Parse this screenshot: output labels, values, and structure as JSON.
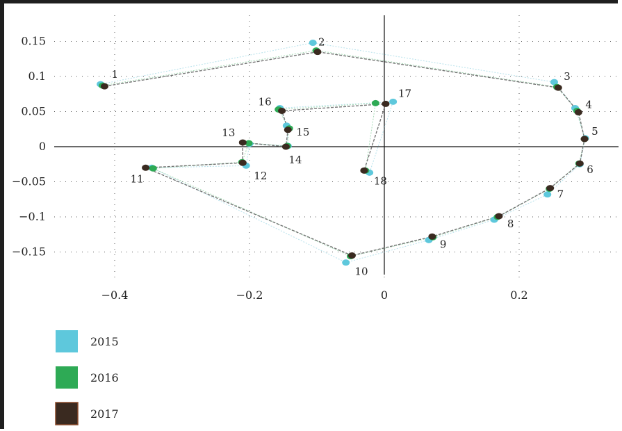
{
  "chart_data": {
    "type": "scatter",
    "title": "",
    "xlabel": "",
    "ylabel": "",
    "xlim": [
      -0.5,
      0.35
    ],
    "ylim": [
      -0.175,
      0.175
    ],
    "grid": true,
    "legend_placement": "bottom-left",
    "xticks": [
      -0.4,
      -0.2,
      0,
      0.2
    ],
    "xtick_labels": [
      "−0.4",
      "−0.2",
      "0",
      "0.2"
    ],
    "yticks": [
      0.15,
      0.1,
      0.05,
      0,
      -0.05,
      -0.1,
      -0.15
    ],
    "ytick_labels": [
      "0.15",
      "0.1",
      "0.05",
      "0",
      "−0.05",
      "−0.1",
      "−0.15"
    ],
    "path_order": [
      "1",
      "2",
      "3",
      "4",
      "5",
      "6",
      "7",
      "8",
      "9",
      "10",
      "11",
      "12",
      "13",
      "14",
      "15",
      "16",
      "17",
      "18"
    ],
    "point_labels": [
      {
        "id": "1",
        "x": -0.415,
        "y": 0.086
      },
      {
        "id": "2",
        "x": -0.1,
        "y": 0.134
      },
      {
        "id": "3",
        "x": 0.258,
        "y": 0.083
      },
      {
        "id": "4",
        "x": 0.288,
        "y": 0.049
      },
      {
        "id": "5",
        "x": 0.297,
        "y": 0.011
      },
      {
        "id": "6",
        "x": 0.29,
        "y": -0.024
      },
      {
        "id": "7",
        "x": 0.246,
        "y": -0.059
      },
      {
        "id": "8",
        "x": 0.17,
        "y": -0.099
      },
      {
        "id": "9",
        "x": 0.072,
        "y": -0.128
      },
      {
        "id": "10",
        "x": -0.048,
        "y": -0.155
      },
      {
        "id": "11",
        "x": -0.354,
        "y": -0.031
      },
      {
        "id": "12",
        "x": -0.21,
        "y": -0.023
      },
      {
        "id": "13",
        "x": -0.21,
        "y": 0.005
      },
      {
        "id": "14",
        "x": -0.146,
        "y": 0.0
      },
      {
        "id": "15",
        "x": -0.143,
        "y": 0.024
      },
      {
        "id": "16",
        "x": -0.152,
        "y": 0.051
      },
      {
        "id": "17",
        "x": 0.002,
        "y": 0.061
      },
      {
        "id": "18",
        "x": -0.03,
        "y": -0.034
      }
    ],
    "series": [
      {
        "name": "2015",
        "color": "#5ec8dc",
        "points": [
          {
            "id": "1",
            "x": -0.421,
            "y": 0.089
          },
          {
            "id": "2",
            "x": -0.106,
            "y": 0.148
          },
          {
            "id": "3",
            "x": 0.252,
            "y": 0.092
          },
          {
            "id": "4",
            "x": 0.283,
            "y": 0.055
          },
          {
            "id": "5",
            "x": 0.298,
            "y": 0.012
          },
          {
            "id": "6",
            "x": 0.29,
            "y": -0.025
          },
          {
            "id": "7",
            "x": 0.242,
            "y": -0.068
          },
          {
            "id": "8",
            "x": 0.163,
            "y": -0.104
          },
          {
            "id": "9",
            "x": 0.066,
            "y": -0.133
          },
          {
            "id": "10",
            "x": -0.057,
            "y": -0.165
          },
          {
            "id": "11",
            "x": -0.345,
            "y": -0.03
          },
          {
            "id": "12",
            "x": -0.205,
            "y": -0.027
          },
          {
            "id": "13",
            "x": -0.2,
            "y": 0.004
          },
          {
            "id": "14",
            "x": -0.143,
            "y": 0.001
          },
          {
            "id": "15",
            "x": -0.145,
            "y": 0.03
          },
          {
            "id": "16",
            "x": -0.155,
            "y": 0.055
          },
          {
            "id": "17",
            "x": 0.013,
            "y": 0.064
          },
          {
            "id": "18",
            "x": -0.022,
            "y": -0.037
          }
        ]
      },
      {
        "name": "2016",
        "color": "#2eaa55",
        "points": [
          {
            "id": "1",
            "x": -0.418,
            "y": 0.087
          },
          {
            "id": "2",
            "x": -0.101,
            "y": 0.137
          },
          {
            "id": "3",
            "x": 0.256,
            "y": 0.085
          },
          {
            "id": "4",
            "x": 0.286,
            "y": 0.051
          },
          {
            "id": "5",
            "x": 0.297,
            "y": 0.011
          },
          {
            "id": "6",
            "x": 0.289,
            "y": -0.024
          },
          {
            "id": "7",
            "x": 0.245,
            "y": -0.06
          },
          {
            "id": "8",
            "x": 0.168,
            "y": -0.1
          },
          {
            "id": "9",
            "x": 0.072,
            "y": -0.129
          },
          {
            "id": "10",
            "x": -0.05,
            "y": -0.156
          },
          {
            "id": "11",
            "x": -0.343,
            "y": -0.031
          },
          {
            "id": "12",
            "x": -0.211,
            "y": -0.022
          },
          {
            "id": "13",
            "x": -0.201,
            "y": 0.005
          },
          {
            "id": "14",
            "x": -0.144,
            "y": 0.001
          },
          {
            "id": "15",
            "x": -0.141,
            "y": 0.026
          },
          {
            "id": "16",
            "x": -0.157,
            "y": 0.053
          },
          {
            "id": "17",
            "x": -0.013,
            "y": 0.062
          },
          {
            "id": "18",
            "x": -0.028,
            "y": -0.034
          }
        ]
      },
      {
        "name": "2017",
        "color": "#3a2a20",
        "points": [
          {
            "id": "1",
            "x": -0.415,
            "y": 0.086
          },
          {
            "id": "2",
            "x": -0.099,
            "y": 0.135
          },
          {
            "id": "3",
            "x": 0.258,
            "y": 0.084
          },
          {
            "id": "4",
            "x": 0.288,
            "y": 0.049
          },
          {
            "id": "5",
            "x": 0.297,
            "y": 0.011
          },
          {
            "id": "6",
            "x": 0.29,
            "y": -0.024
          },
          {
            "id": "7",
            "x": 0.246,
            "y": -0.059
          },
          {
            "id": "8",
            "x": 0.17,
            "y": -0.099
          },
          {
            "id": "9",
            "x": 0.071,
            "y": -0.128
          },
          {
            "id": "10",
            "x": -0.048,
            "y": -0.155
          },
          {
            "id": "11",
            "x": -0.354,
            "y": -0.03
          },
          {
            "id": "12",
            "x": -0.21,
            "y": -0.023
          },
          {
            "id": "13",
            "x": -0.21,
            "y": 0.006
          },
          {
            "id": "14",
            "x": -0.146,
            "y": 0.0
          },
          {
            "id": "15",
            "x": -0.143,
            "y": 0.024
          },
          {
            "id": "16",
            "x": -0.152,
            "y": 0.051
          },
          {
            "id": "17",
            "x": 0.002,
            "y": 0.061
          },
          {
            "id": "18",
            "x": -0.03,
            "y": -0.034
          }
        ]
      }
    ],
    "legend": [
      {
        "label": "2015",
        "color": "#5ec8dc"
      },
      {
        "label": "2016",
        "color": "#2eaa55"
      },
      {
        "label": "2017",
        "color": "#3a2a20"
      }
    ]
  }
}
